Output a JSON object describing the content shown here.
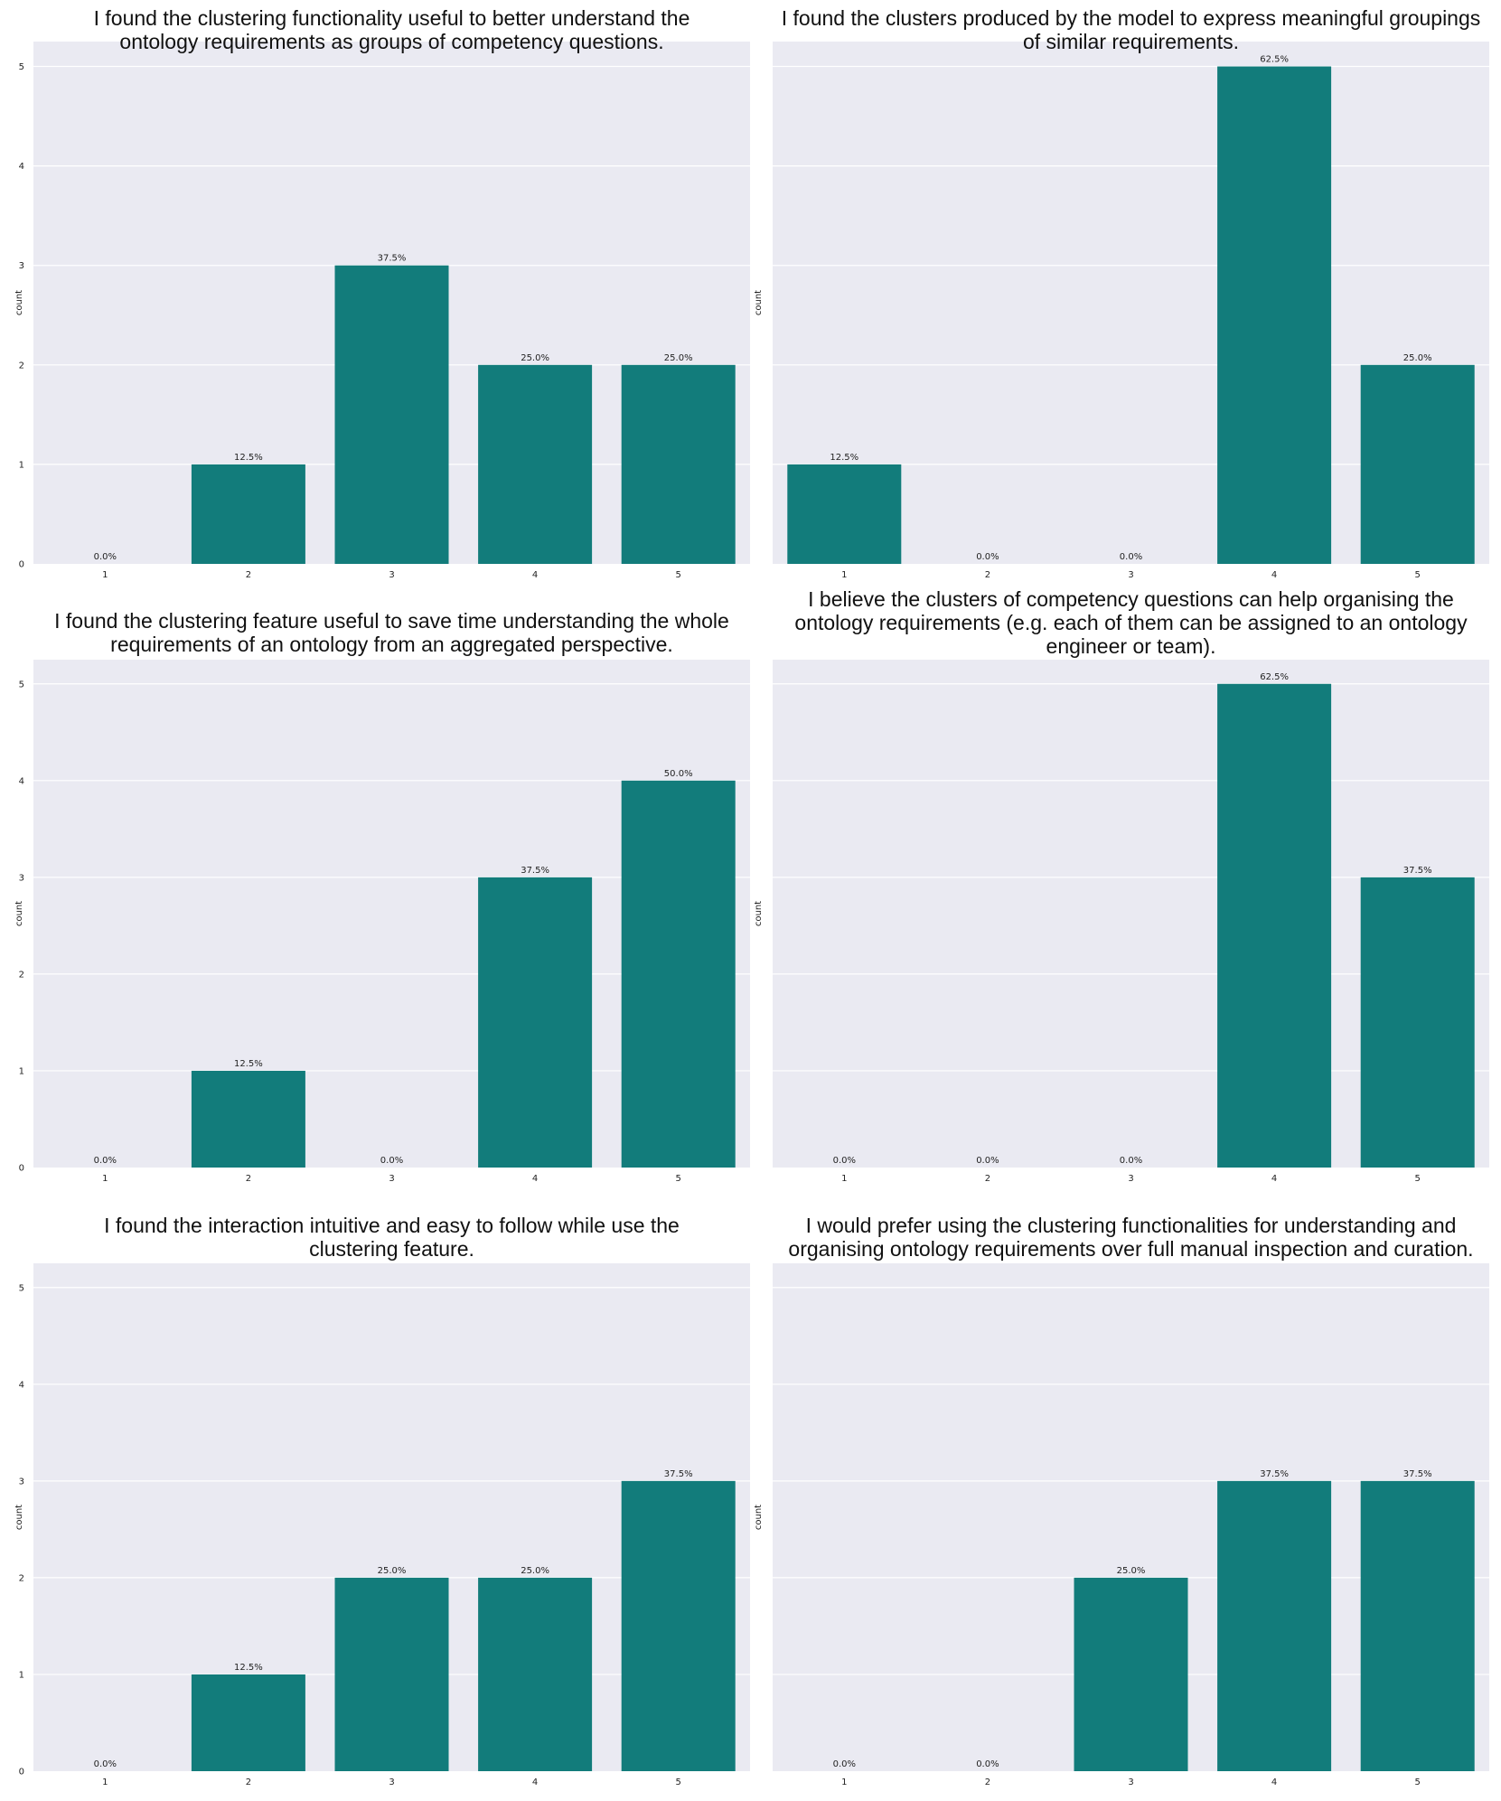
{
  "bar_color": "#127c7b",
  "plot_bg": "#eaeaf2",
  "grid_color": "#ffffff",
  "chart_data": [
    {
      "type": "bar",
      "title_lines": [
        "I found the clustering functionality useful to better understand the",
        "ontology requirements as groups of competency questions."
      ],
      "categories": [
        "1",
        "2",
        "3",
        "4",
        "5"
      ],
      "values": [
        0,
        1,
        3,
        2,
        2
      ],
      "labels": [
        "0.0%",
        "12.5%",
        "37.5%",
        "25.0%",
        "25.0%"
      ],
      "yticks": [
        "0",
        "1",
        "2",
        "3",
        "4",
        "5"
      ],
      "ylabel": "count",
      "ylim": [
        0,
        5.25
      ],
      "grid": true
    },
    {
      "type": "bar",
      "title_lines": [
        "I found the clusters produced by the model to express meaningful groupings",
        "of similar requirements."
      ],
      "categories": [
        "1",
        "2",
        "3",
        "4",
        "5"
      ],
      "values": [
        1,
        0,
        0,
        5,
        2
      ],
      "labels": [
        "12.5%",
        "0.0%",
        "0.0%",
        "62.5%",
        "25.0%"
      ],
      "yticks": [],
      "ylabel": "count",
      "ylim": [
        0,
        5.25
      ],
      "grid": true
    },
    {
      "type": "bar",
      "title_lines": [
        "I found the clustering feature useful to save time understanding the whole",
        "requirements of an ontology from an aggregated perspective."
      ],
      "categories": [
        "1",
        "2",
        "3",
        "4",
        "5"
      ],
      "values": [
        0,
        1,
        0,
        3,
        4
      ],
      "labels": [
        "0.0%",
        "12.5%",
        "0.0%",
        "37.5%",
        "50.0%"
      ],
      "yticks": [
        "0",
        "1",
        "2",
        "3",
        "4",
        "5"
      ],
      "ylabel": "count",
      "ylim": [
        0,
        5.25
      ],
      "grid": true
    },
    {
      "type": "bar",
      "title_lines": [
        "I believe the clusters of competency questions can help organising the",
        "ontology requirements (e.g. each of them can be assigned to an ontology",
        "engineer or team)."
      ],
      "categories": [
        "1",
        "2",
        "3",
        "4",
        "5"
      ],
      "values": [
        0,
        0,
        0,
        5,
        3
      ],
      "labels": [
        "0.0%",
        "0.0%",
        "0.0%",
        "62.5%",
        "37.5%"
      ],
      "yticks": [],
      "ylabel": "count",
      "ylim": [
        0,
        5.25
      ],
      "grid": true
    },
    {
      "type": "bar",
      "title_lines": [
        "I found the interaction intuitive and easy to follow while use the",
        "clustering feature."
      ],
      "categories": [
        "1",
        "2",
        "3",
        "4",
        "5"
      ],
      "values": [
        0,
        1,
        2,
        2,
        3
      ],
      "labels": [
        "0.0%",
        "12.5%",
        "25.0%",
        "25.0%",
        "37.5%"
      ],
      "yticks": [
        "0",
        "1",
        "2",
        "3",
        "4",
        "5"
      ],
      "ylabel": "count",
      "ylim": [
        0,
        5.25
      ],
      "grid": true
    },
    {
      "type": "bar",
      "title_lines": [
        "I would prefer using the clustering functionalities for understanding and",
        "organising ontology requirements over full manual inspection and curation."
      ],
      "categories": [
        "1",
        "2",
        "3",
        "4",
        "5"
      ],
      "values": [
        0,
        0,
        2,
        3,
        3
      ],
      "labels": [
        "0.0%",
        "0.0%",
        "25.0%",
        "37.5%",
        "37.5%"
      ],
      "yticks": [],
      "ylabel": "count",
      "ylim": [
        0,
        5.25
      ],
      "grid": true
    }
  ]
}
